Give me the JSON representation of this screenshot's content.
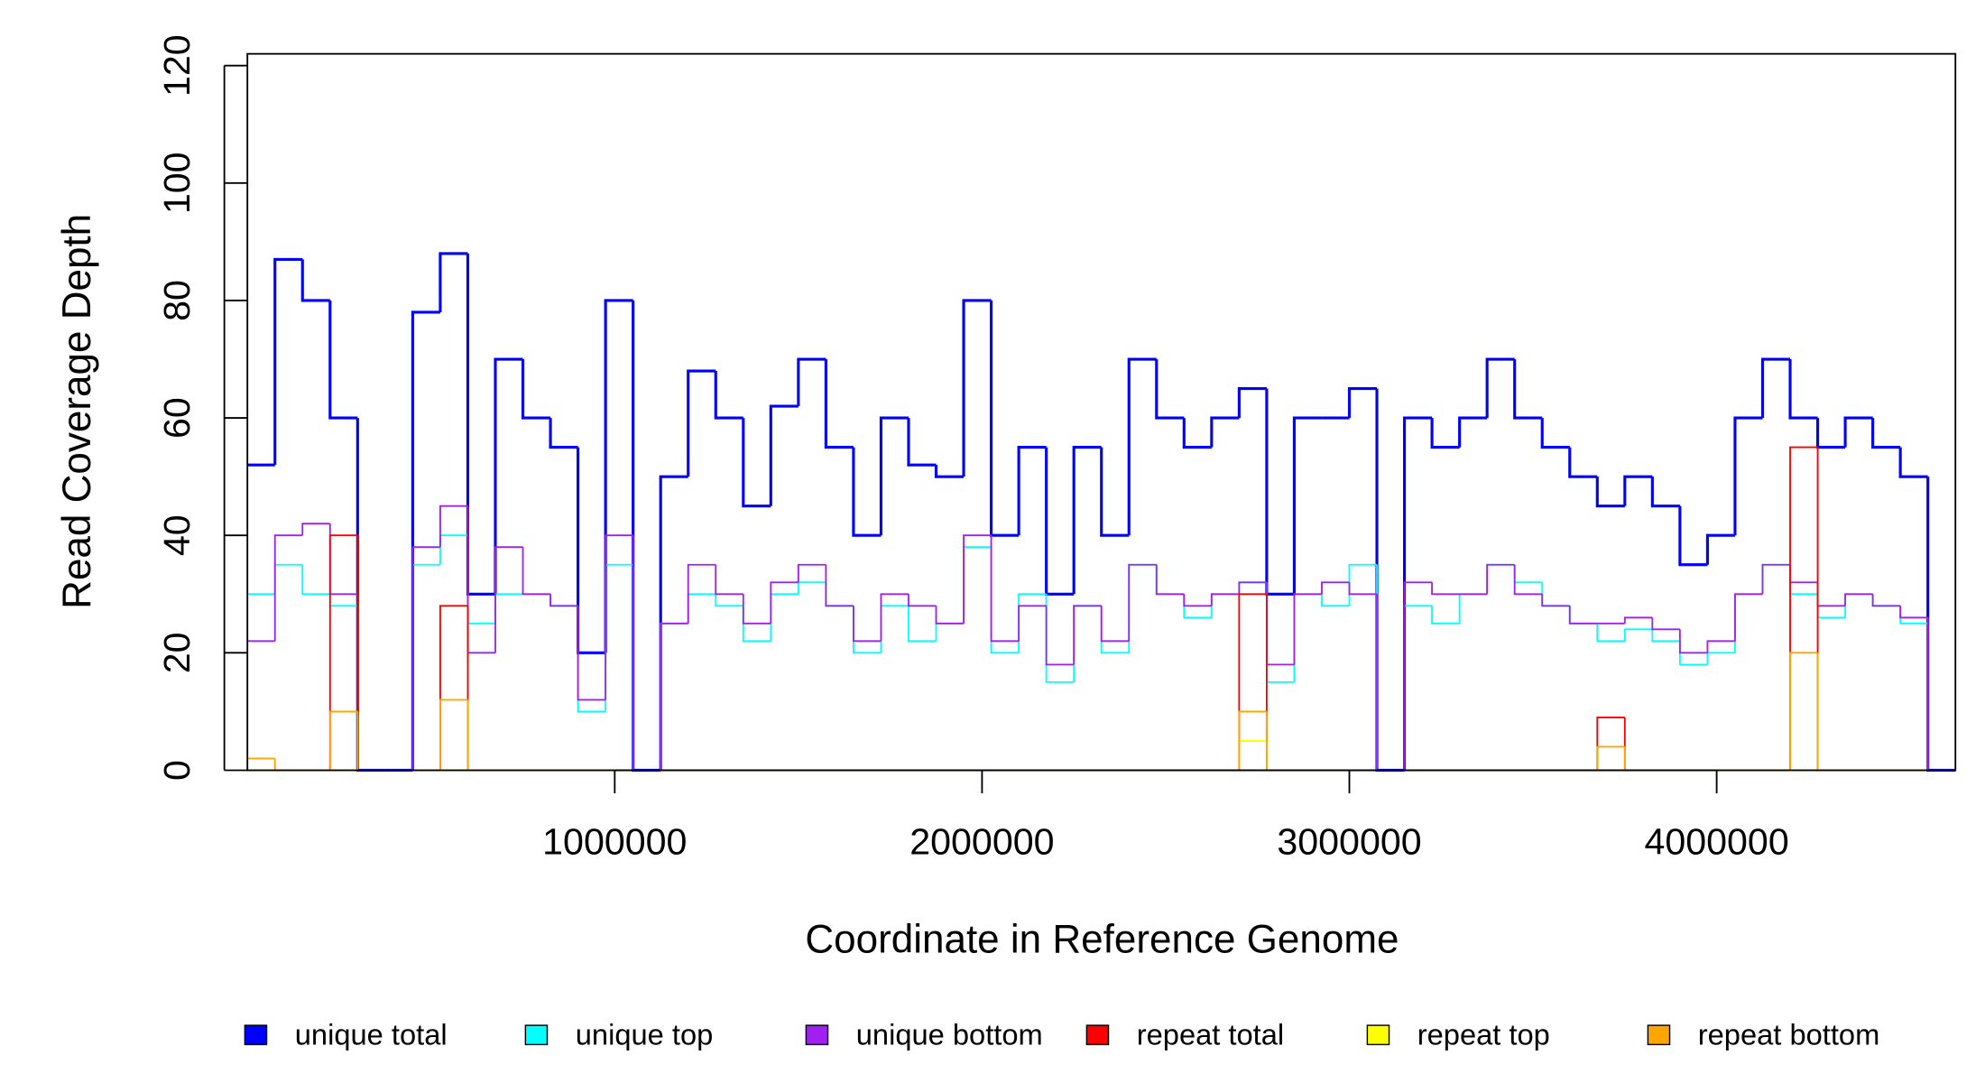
{
  "chart_data": {
    "type": "step",
    "xlabel": "Coordinate in Reference Genome",
    "ylabel": "Read Coverage Depth",
    "xlim": [
      0,
      4650000
    ],
    "ylim": [
      0,
      122
    ],
    "xticks": [
      1000000,
      2000000,
      3000000,
      4000000
    ],
    "yticks": [
      0,
      20,
      40,
      60,
      80,
      100,
      120
    ],
    "legend": "bottom",
    "x": [
      0,
      75000,
      150000,
      225000,
      300000,
      375000,
      450000,
      525000,
      600000,
      675000,
      750000,
      825000,
      900000,
      975000,
      1050000,
      1125000,
      1200000,
      1275000,
      1350000,
      1425000,
      1500000,
      1575000,
      1650000,
      1725000,
      1800000,
      1875000,
      1950000,
      2025000,
      2100000,
      2175000,
      2250000,
      2325000,
      2400000,
      2475000,
      2550000,
      2625000,
      2700000,
      2775000,
      2850000,
      2925000,
      3000000,
      3075000,
      3150000,
      3225000,
      3300000,
      3375000,
      3450000,
      3525000,
      3600000,
      3675000,
      3750000,
      3825000,
      3900000,
      3975000,
      4050000,
      4125000,
      4200000,
      4275000,
      4350000,
      4425000,
      4500000,
      4575000
    ],
    "series": [
      {
        "name": "unique total",
        "color": "#0000ff",
        "values": [
          52,
          87,
          80,
          60,
          0,
          0,
          78,
          88,
          30,
          70,
          60,
          55,
          20,
          80,
          0,
          50,
          68,
          60,
          45,
          62,
          70,
          55,
          40,
          60,
          52,
          50,
          80,
          40,
          55,
          30,
          55,
          40,
          70,
          60,
          55,
          60,
          65,
          30,
          60,
          60,
          65,
          0,
          60,
          55,
          60,
          70,
          60,
          55,
          50,
          45,
          50,
          45,
          35,
          40,
          60,
          70,
          60,
          55,
          60,
          55,
          50,
          0
        ]
      },
      {
        "name": "unique top",
        "color": "#00ffff",
        "values": [
          30,
          35,
          30,
          28,
          0,
          0,
          35,
          40,
          25,
          30,
          30,
          28,
          10,
          35,
          0,
          25,
          30,
          28,
          22,
          30,
          32,
          28,
          20,
          28,
          22,
          25,
          38,
          20,
          30,
          15,
          28,
          20,
          35,
          30,
          26,
          30,
          32,
          15,
          30,
          28,
          35,
          0,
          28,
          25,
          30,
          35,
          32,
          28,
          25,
          22,
          24,
          22,
          18,
          20,
          30,
          35,
          30,
          26,
          30,
          28,
          25,
          0
        ]
      },
      {
        "name": "unique bottom",
        "color": "#a020f0",
        "values": [
          22,
          40,
          42,
          30,
          0,
          0,
          38,
          45,
          20,
          38,
          30,
          28,
          12,
          40,
          0,
          25,
          35,
          30,
          25,
          32,
          35,
          28,
          22,
          30,
          28,
          25,
          40,
          22,
          28,
          18,
          28,
          22,
          35,
          30,
          28,
          30,
          32,
          18,
          30,
          32,
          30,
          0,
          32,
          30,
          30,
          35,
          30,
          28,
          25,
          25,
          26,
          24,
          20,
          22,
          30,
          35,
          32,
          28,
          30,
          28,
          26,
          0
        ]
      },
      {
        "name": "repeat total",
        "color": "#ff0000",
        "values": [
          0,
          0,
          0,
          40,
          0,
          0,
          0,
          28,
          0,
          0,
          0,
          0,
          0,
          0,
          0,
          0,
          0,
          0,
          0,
          0,
          0,
          0,
          0,
          0,
          0,
          0,
          0,
          0,
          0,
          0,
          0,
          0,
          0,
          0,
          0,
          0,
          30,
          0,
          0,
          0,
          0,
          0,
          0,
          0,
          0,
          0,
          0,
          0,
          0,
          9,
          0,
          0,
          0,
          0,
          0,
          0,
          55,
          0,
          0,
          0,
          0,
          0
        ]
      },
      {
        "name": "repeat top",
        "color": "#ffff00",
        "values": [
          0,
          0,
          0,
          0,
          0,
          0,
          0,
          0,
          0,
          0,
          0,
          0,
          0,
          0,
          0,
          0,
          0,
          0,
          0,
          0,
          0,
          0,
          0,
          0,
          0,
          0,
          0,
          0,
          0,
          0,
          0,
          0,
          0,
          0,
          0,
          0,
          5,
          0,
          0,
          0,
          0,
          0,
          0,
          0,
          0,
          0,
          0,
          0,
          0,
          0,
          0,
          0,
          0,
          0,
          0,
          0,
          0,
          0,
          0,
          0,
          0,
          0
        ]
      },
      {
        "name": "repeat bottom",
        "color": "#ffa500",
        "values": [
          2,
          0,
          0,
          10,
          0,
          0,
          0,
          12,
          0,
          0,
          0,
          0,
          0,
          0,
          0,
          0,
          0,
          0,
          0,
          0,
          0,
          0,
          0,
          0,
          0,
          0,
          0,
          0,
          0,
          0,
          0,
          0,
          0,
          0,
          0,
          0,
          10,
          0,
          0,
          0,
          0,
          0,
          0,
          0,
          0,
          0,
          0,
          0,
          0,
          4,
          0,
          0,
          0,
          0,
          0,
          0,
          20,
          0,
          0,
          0,
          0,
          0
        ]
      }
    ]
  }
}
